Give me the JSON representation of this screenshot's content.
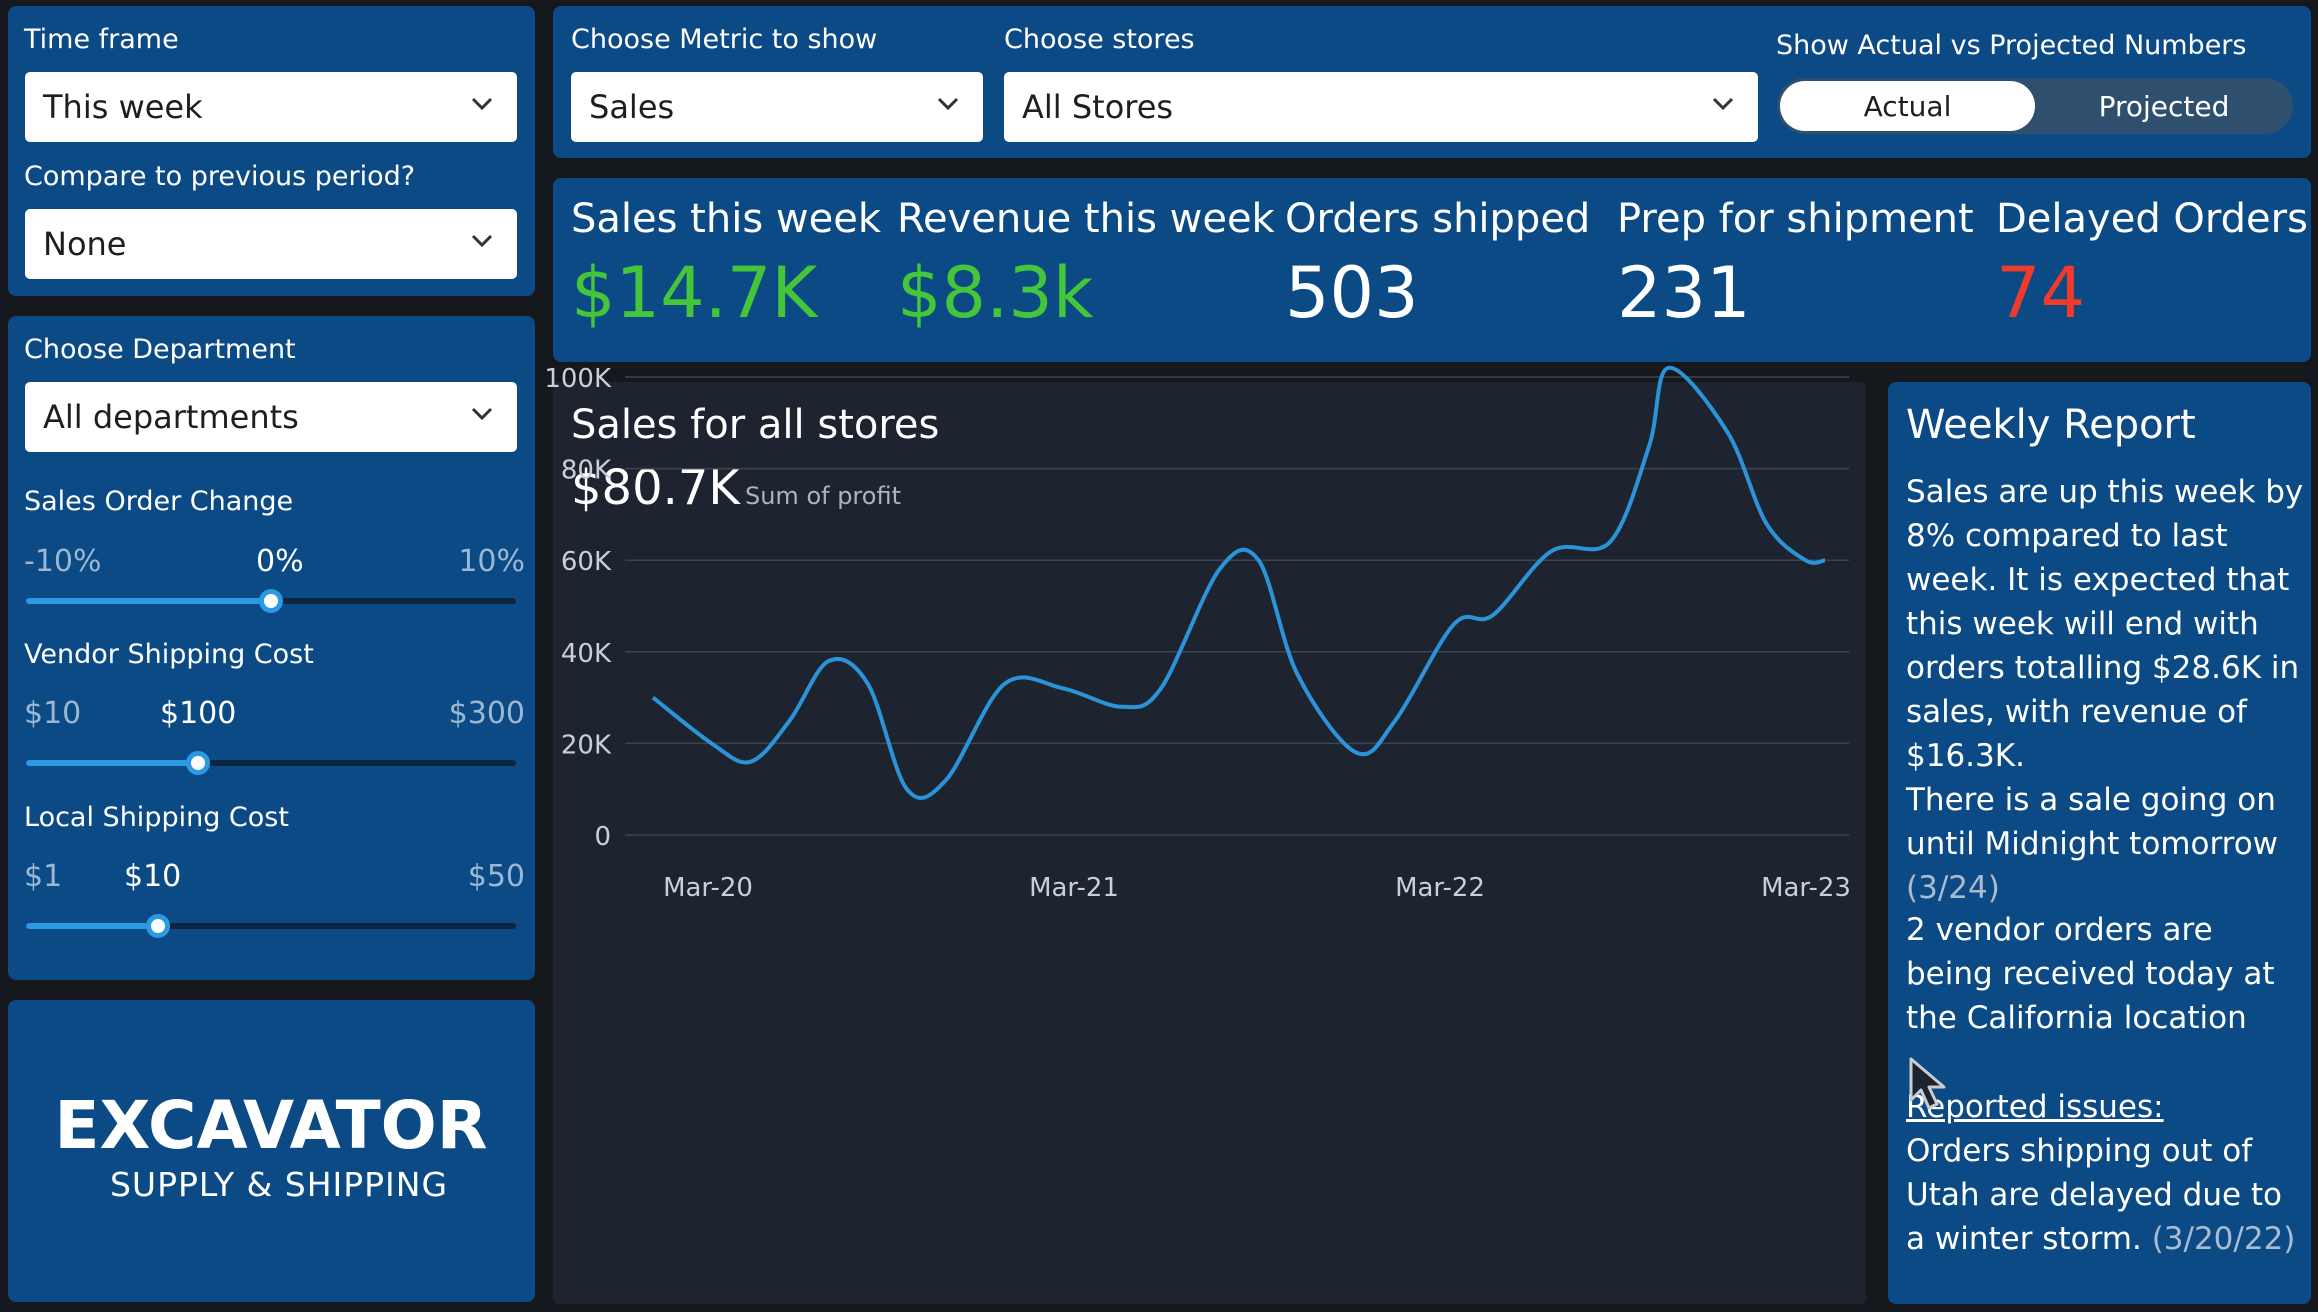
{
  "filters": {
    "time_frame_label": "Time frame",
    "time_frame_value": "This week",
    "compare_label": "Compare to previous period?",
    "compare_value": "None",
    "department_label": "Choose Department",
    "department_value": "All departments"
  },
  "sliders": {
    "sales_order_change": {
      "label": "Sales Order Change",
      "min": "-10%",
      "current": "0%",
      "max": "10%",
      "fraction": 0.5
    },
    "vendor_shipping": {
      "label": "Vendor Shipping Cost",
      "min": "$10",
      "current": "$100",
      "max": "$300",
      "fraction": 0.35
    },
    "local_shipping": {
      "label": "Local Shipping Cost",
      "min": "$1",
      "current": "$10",
      "max": "$50",
      "fraction": 0.27
    }
  },
  "logo": {
    "line1": "EXCAVATOR",
    "line2": "SUPPLY & SHIPPING"
  },
  "top_controls": {
    "metric_label": "Choose Metric to show",
    "metric_value": "Sales",
    "stores_label": "Choose stores",
    "stores_value": "All Stores",
    "toggle_label": "Show Actual vs Projected Numbers",
    "toggle_actual": "Actual",
    "toggle_projected": "Projected"
  },
  "kpis": {
    "sales_label": "Sales this week",
    "sales_value": "$14.7K",
    "revenue_label": "Revenue this week",
    "revenue_value": "$8.3k",
    "shipped_label": "Orders shipped",
    "shipped_value": "503",
    "prep_label": "Prep for shipment",
    "prep_value": "231",
    "delayed_label": "Delayed Orders",
    "delayed_value": "74"
  },
  "colors": {
    "panel": "#0b4a84",
    "positive": "#44c53a",
    "alert": "#ee3b2b",
    "line": "#2b93d8"
  },
  "chart_data": {
    "type": "line",
    "title": "Sales for all stores",
    "total": "$80.7K",
    "total_caption": "Sum of profit",
    "y_ticks": [
      "0",
      "20K",
      "40K",
      "60K",
      "80K",
      "100K"
    ],
    "x_ticks": [
      "Mar-20",
      "Mar-21",
      "Mar-22",
      "Mar-23"
    ],
    "ylim": [
      0,
      100000
    ],
    "xlim": [
      0,
      3
    ],
    "grid": true,
    "series": [
      {
        "x": [
          0,
          0.15,
          0.25,
          0.35,
          0.45,
          0.55,
          0.65,
          0.75,
          0.9,
          1.05,
          1.2,
          1.3,
          1.45,
          1.55,
          1.65,
          1.8,
          1.9,
          2.05,
          2.15,
          2.3,
          2.45,
          2.55,
          2.6,
          2.75,
          2.85,
          2.95,
          3
        ],
        "y": [
          30000,
          20000,
          16000,
          25000,
          38000,
          33000,
          10000,
          12000,
          33000,
          32000,
          28000,
          32000,
          58000,
          60000,
          35000,
          18000,
          25000,
          46000,
          48000,
          62000,
          64000,
          85000,
          102000,
          88000,
          68000,
          60000,
          60000
        ]
      }
    ]
  },
  "report": {
    "title": "Weekly Report",
    "p1": "Sales are up this week by 8% compared to last week. It is expected that this week will end with orders totalling $28.6K in sales, with revenue of $16.3K.",
    "p2": "There is a sale going on until Midnight tomorrow",
    "p2_date": "(3/24)",
    "p3": "2 vendor orders are being received today at the California location",
    "issues_heading": "Reported issues:",
    "issues_text": "Orders shipping out of Utah are delayed due to a winter storm.",
    "issues_date": "(3/20/22)"
  }
}
